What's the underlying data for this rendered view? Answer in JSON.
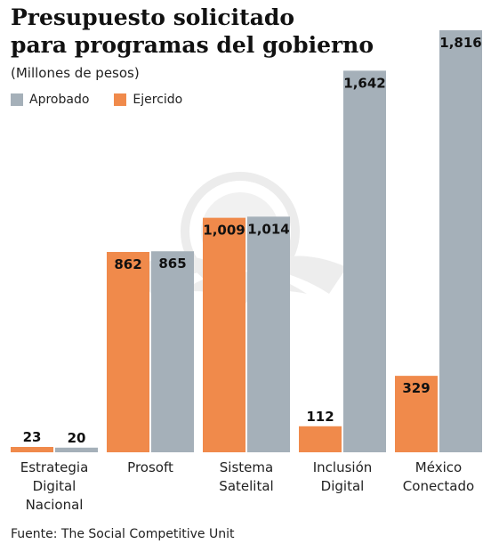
{
  "colors": {
    "aprobado": "#a5b0b9",
    "ejercido": "#f08a4b",
    "value_text": "#111111",
    "watermark": "#efefef"
  },
  "header": {
    "title_line1": "Presupuesto solicitado",
    "title_line2": "para programas del gobierno",
    "subtitle": "(Millones de pesos)"
  },
  "legend": {
    "aprobado": "Aprobado",
    "ejercido": "Ejercido"
  },
  "source": "Fuente: The Social Competitive Unit",
  "chart_data": {
    "type": "bar",
    "categories": [
      [
        "Estrategia",
        "Digital",
        "Nacional"
      ],
      [
        "Prosoft"
      ],
      [
        "Sistema",
        "Satelital"
      ],
      [
        "Inclusión",
        "Digital"
      ],
      [
        "México",
        "Conectado"
      ]
    ],
    "series": [
      {
        "name": "Ejercido",
        "values": [
          23,
          862,
          1009,
          112,
          329
        ],
        "labels": [
          "23",
          "862",
          "1,009",
          "112",
          "329"
        ]
      },
      {
        "name": "Aprobado",
        "values": [
          20,
          865,
          1014,
          1642,
          1816
        ],
        "labels": [
          "20",
          "865",
          "1,014",
          "1,642",
          "1,816"
        ]
      }
    ],
    "ylim": [
      0,
      1816
    ],
    "grid": false,
    "legend_position": "top-left"
  }
}
